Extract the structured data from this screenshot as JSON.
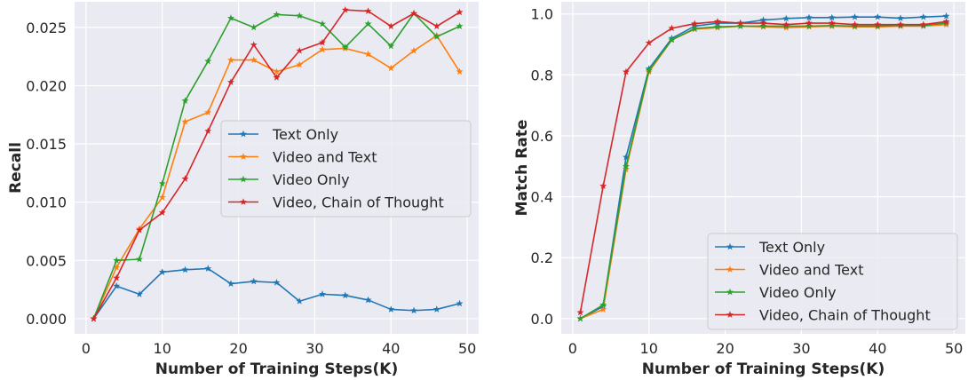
{
  "chart_data": [
    {
      "type": "line",
      "title": "",
      "xlabel": "Number of Training Steps(K)",
      "ylabel": "Recall",
      "xlim": [
        -1.5,
        51.5
      ],
      "ylim": [
        -0.0013,
        0.0272
      ],
      "x": [
        1,
        4,
        7,
        10,
        13,
        16,
        19,
        22,
        25,
        28,
        31,
        34,
        37,
        40,
        43,
        46,
        49
      ],
      "xticks": [
        0,
        10,
        20,
        30,
        40,
        50
      ],
      "xtick_labels": [
        "0",
        "10",
        "20",
        "30",
        "40",
        "50"
      ],
      "yticks": [
        0.0,
        0.005,
        0.01,
        0.015,
        0.02,
        0.025
      ],
      "ytick_labels": [
        "0.000",
        "0.005",
        "0.010",
        "0.015",
        "0.020",
        "0.025"
      ],
      "legend_position": "center-right",
      "series": [
        {
          "name": "Text Only",
          "color": "#1f77b4",
          "values": [
            0.0,
            0.0028,
            0.0021,
            0.004,
            0.0042,
            0.0043,
            0.003,
            0.0032,
            0.0031,
            0.0015,
            0.0021,
            0.002,
            0.0016,
            0.0008,
            0.0007,
            0.0008,
            0.0013
          ]
        },
        {
          "name": "Video and Text",
          "color": "#ff7f0e",
          "values": [
            0.0,
            0.0044,
            0.0077,
            0.0104,
            0.0169,
            0.0177,
            0.0222,
            0.0222,
            0.0212,
            0.0218,
            0.0231,
            0.0232,
            0.0227,
            0.0215,
            0.023,
            0.0243,
            0.0212
          ]
        },
        {
          "name": "Video Only",
          "color": "#2ca02c",
          "values": [
            0.0,
            0.005,
            0.0051,
            0.0116,
            0.0187,
            0.0221,
            0.0258,
            0.025,
            0.0261,
            0.026,
            0.0253,
            0.0233,
            0.0253,
            0.0234,
            0.0262,
            0.0242,
            0.0251
          ]
        },
        {
          "name": "Video, Chain of Thought",
          "color": "#d62728",
          "values": [
            0.0,
            0.0035,
            0.0076,
            0.0091,
            0.012,
            0.0161,
            0.0203,
            0.0235,
            0.0207,
            0.023,
            0.0237,
            0.0265,
            0.0264,
            0.0251,
            0.0262,
            0.0251,
            0.0263
          ]
        }
      ]
    },
    {
      "type": "line",
      "title": "",
      "xlabel": "Number of Training Steps(K)",
      "ylabel": "Match Rate",
      "xlim": [
        -1.5,
        51.5
      ],
      "ylim": [
        -0.05,
        1.04
      ],
      "x": [
        1,
        4,
        7,
        10,
        13,
        16,
        19,
        22,
        25,
        28,
        31,
        34,
        37,
        40,
        43,
        46,
        49
      ],
      "xticks": [
        0,
        10,
        20,
        30,
        40,
        50
      ],
      "xtick_labels": [
        "0",
        "10",
        "20",
        "30",
        "40",
        "50"
      ],
      "yticks": [
        0.0,
        0.2,
        0.4,
        0.6,
        0.8,
        1.0
      ],
      "ytick_labels": [
        "0.0",
        "0.2",
        "0.4",
        "0.6",
        "0.8",
        "1.0"
      ],
      "legend_position": "lower-right",
      "series": [
        {
          "name": "Text Only",
          "color": "#1f77b4",
          "values": [
            0.0,
            0.04,
            0.53,
            0.82,
            0.92,
            0.96,
            0.97,
            0.97,
            0.98,
            0.985,
            0.988,
            0.988,
            0.99,
            0.99,
            0.986,
            0.99,
            0.993
          ]
        },
        {
          "name": "Video and Text",
          "color": "#ff7f0e",
          "values": [
            0.0,
            0.03,
            0.49,
            0.81,
            0.915,
            0.95,
            0.955,
            0.96,
            0.958,
            0.955,
            0.958,
            0.96,
            0.958,
            0.958,
            0.96,
            0.96,
            0.965
          ]
        },
        {
          "name": "Video Only",
          "color": "#2ca02c",
          "values": [
            0.0,
            0.045,
            0.5,
            0.815,
            0.915,
            0.952,
            0.958,
            0.96,
            0.96,
            0.96,
            0.96,
            0.962,
            0.96,
            0.96,
            0.962,
            0.962,
            0.97
          ]
        },
        {
          "name": "Video, Chain of Thought",
          "color": "#d62728",
          "values": [
            0.02,
            0.435,
            0.81,
            0.905,
            0.953,
            0.968,
            0.975,
            0.97,
            0.97,
            0.965,
            0.97,
            0.97,
            0.965,
            0.965,
            0.965,
            0.965,
            0.975
          ]
        }
      ]
    }
  ]
}
